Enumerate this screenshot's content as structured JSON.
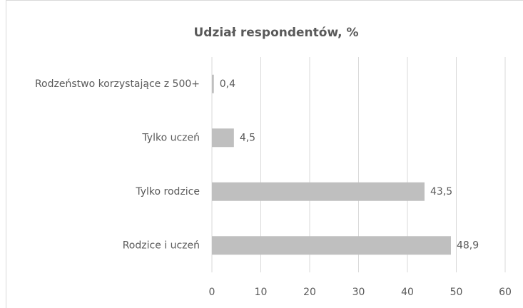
{
  "chart_data": {
    "type": "bar",
    "orientation": "horizontal",
    "title": "Udział respondentów, %",
    "categories": [
      "Rodzeństwo korzystające z 500+",
      "Tylko uczeń",
      "Tylko rodzice",
      "Rodzice i uczeń"
    ],
    "values": [
      0.4,
      4.5,
      43.5,
      48.9
    ],
    "value_labels": [
      "0,4",
      "4,5",
      "43,5",
      "48,9"
    ],
    "color": "#bfbfbf",
    "xlim": [
      0,
      60
    ],
    "xticks": [
      0,
      10,
      20,
      30,
      40,
      50,
      60
    ],
    "grid": true
  }
}
